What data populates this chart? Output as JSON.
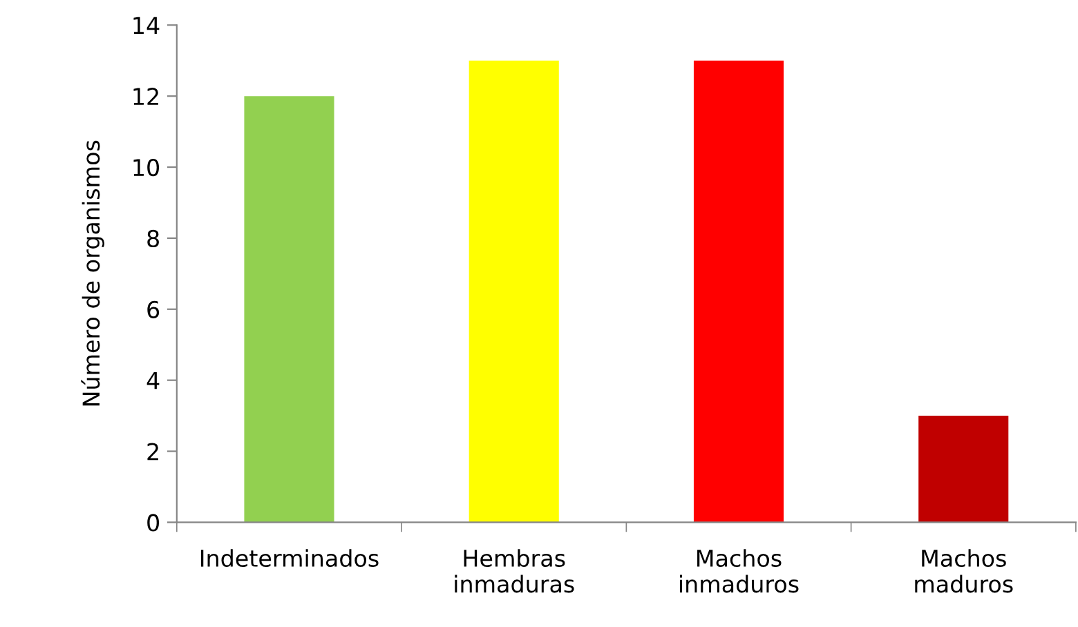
{
  "chart_data": {
    "type": "bar",
    "ylabel": "Número de organismos",
    "categories": [
      "Indeterminados",
      "Hembras\ninmaduras",
      "Machos\ninmaduros",
      "Machos\nmaduros"
    ],
    "values": [
      12,
      13,
      13,
      3
    ],
    "colors": [
      "#92d050",
      "#ffff00",
      "#ff0000",
      "#c00000"
    ],
    "ylim": [
      0,
      14
    ],
    "yticks": [
      0,
      2,
      4,
      6,
      8,
      10,
      12,
      14
    ],
    "grid": false,
    "legend": false
  }
}
